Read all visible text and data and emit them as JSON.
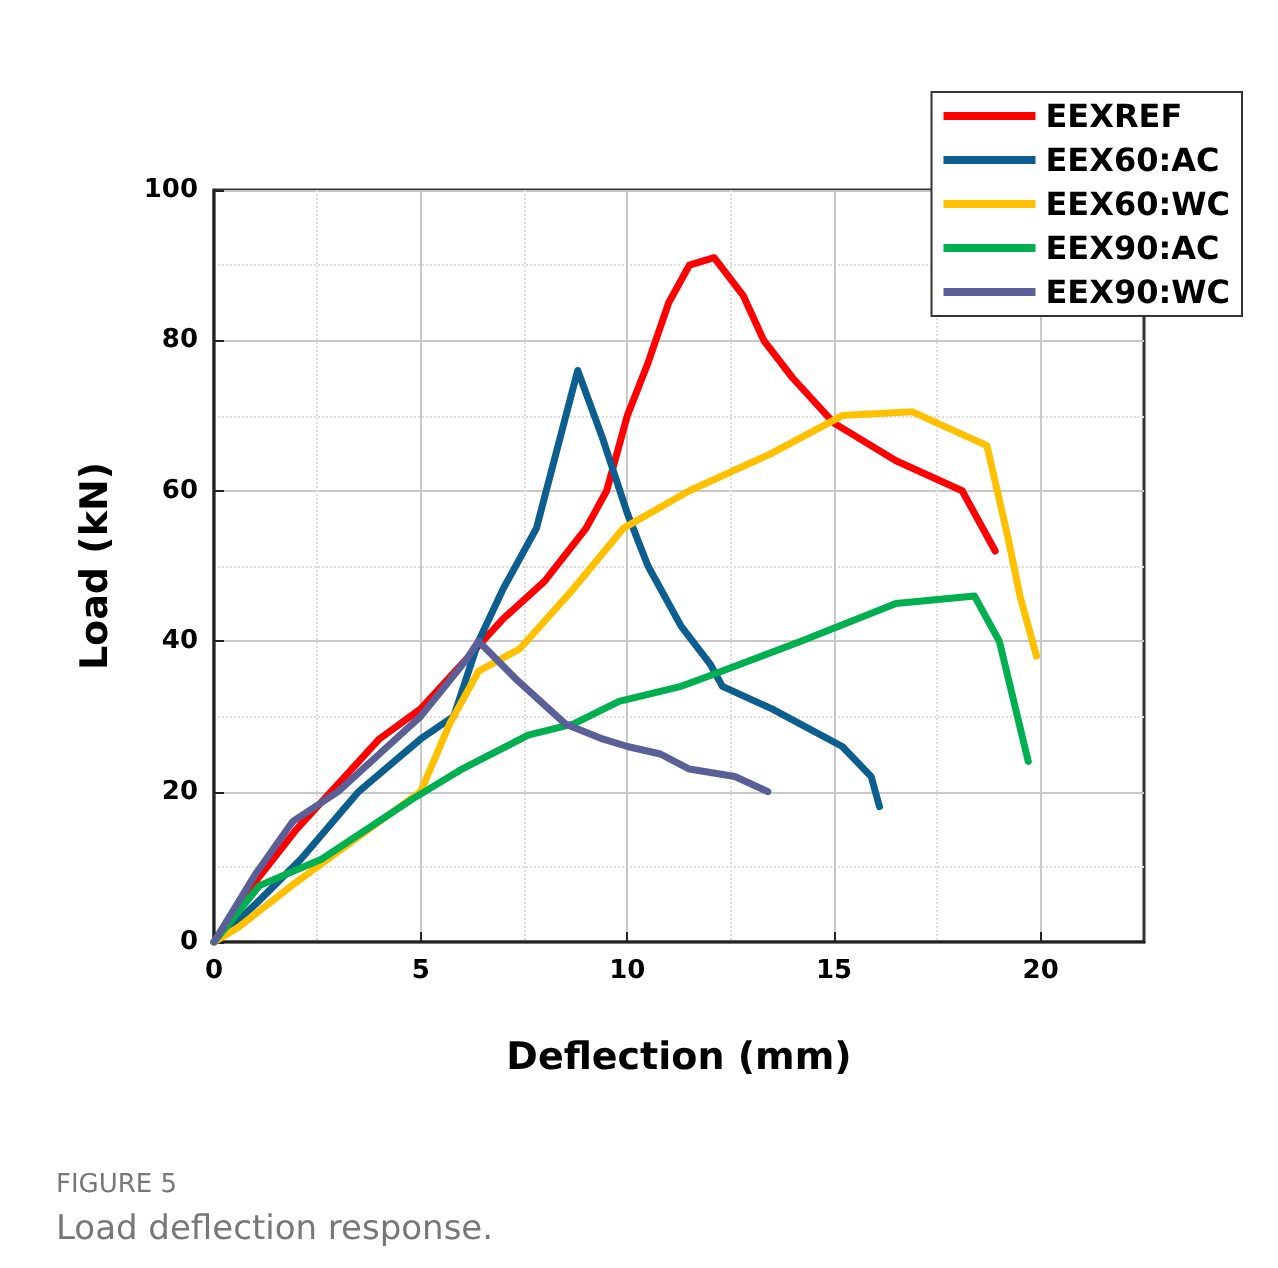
{
  "chart_data": {
    "type": "line",
    "xlabel": "Deflection (mm)",
    "ylabel": "Load (kN)",
    "xlim": [
      0,
      22.5
    ],
    "xticks": [
      0,
      5,
      10,
      15,
      20
    ],
    "ylim": [
      0,
      100
    ],
    "yticks": [
      0,
      20,
      40,
      60,
      80,
      100
    ],
    "grid": true,
    "legend": "top right",
    "marker": "none",
    "line_style": "solid",
    "annotations": [
      "FIGURE 5",
      "Load deflection response."
    ],
    "series": [
      {
        "name": "EEXREF",
        "color": "#ff0000",
        "x": [
          0,
          1,
          2,
          3,
          4,
          5,
          6,
          7,
          8,
          9,
          9.5,
          10,
          10.5,
          11,
          11.5,
          12.1,
          12.8,
          13.3,
          14,
          15,
          16.5,
          18.1,
          18.9
        ],
        "values": [
          0,
          8,
          15,
          21,
          27,
          31,
          37,
          43,
          48,
          55,
          60,
          70,
          77,
          85,
          90,
          91,
          86,
          80,
          75,
          69,
          64,
          60,
          52
        ]
      },
      {
        "name": "EEX60:AC",
        "color": "#0b5e8e",
        "x": [
          0,
          1,
          2.1,
          3.5,
          5,
          5.8,
          6.4,
          7,
          7.8,
          8.8,
          9.4,
          10,
          10.5,
          11.3,
          12,
          12.3,
          13.5,
          15.2,
          15.9,
          16.1
        ],
        "values": [
          0,
          5,
          11,
          20,
          27,
          30,
          40,
          47,
          55,
          76,
          67,
          57,
          50,
          42,
          37,
          34,
          31,
          26,
          22,
          18
        ]
      },
      {
        "name": "EEX60:WC",
        "color": "#ffc000",
        "x": [
          0,
          0.6,
          2,
          3.5,
          5,
          5.7,
          6.4,
          7.4,
          8.7,
          9.9,
          11.5,
          13.5,
          15.2,
          16.9,
          18.7,
          19.2,
          19.5,
          19.9
        ],
        "values": [
          0,
          2,
          8,
          14,
          20,
          29,
          36,
          39,
          47,
          55,
          60,
          65,
          70,
          70.5,
          66,
          54,
          46,
          38
        ]
      },
      {
        "name": "EEX90:AC",
        "color": "#00b050",
        "x": [
          0,
          1.1,
          2.6,
          4.8,
          6,
          7.6,
          8.7,
          9.8,
          11.3,
          11.8,
          14.2,
          16.5,
          18.4,
          19,
          19.7
        ],
        "values": [
          0,
          7.5,
          11,
          19,
          23,
          27.5,
          29,
          32,
          34,
          35,
          40,
          45,
          46,
          40,
          24
        ]
      },
      {
        "name": "EEX90:WC",
        "color": "#5b5f97",
        "x": [
          0,
          1,
          1.9,
          3,
          4,
          5,
          6.1,
          6.4,
          7.3,
          8.5,
          9.4,
          10,
          10.8,
          11.5,
          12.6,
          13.4
        ],
        "values": [
          0,
          9,
          16,
          20,
          25,
          30,
          37.5,
          40,
          35,
          29,
          27,
          26,
          25,
          23,
          22,
          20
        ]
      }
    ]
  }
}
